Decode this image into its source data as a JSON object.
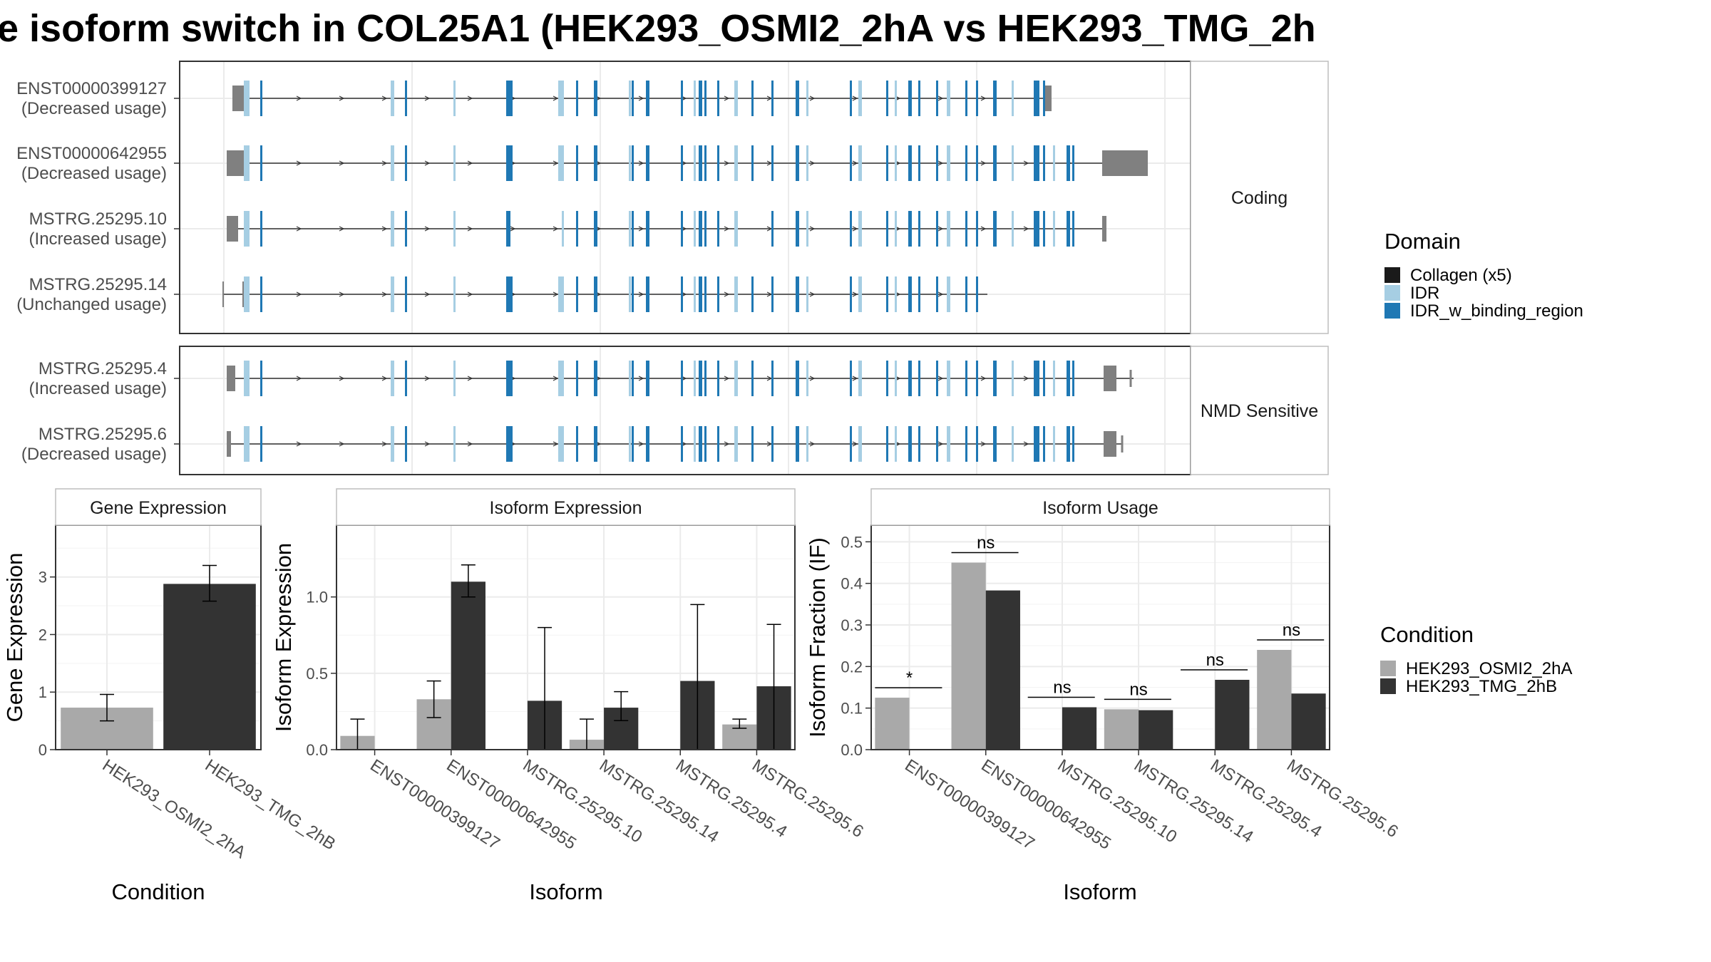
{
  "title": "e isoform switch in COL25A1 (HEK293_OSMI2_2hA vs HEK293_TMG_2h",
  "colors": {
    "condition_a": "#a9a9a9",
    "condition_b": "#333333",
    "utr": "#808080",
    "collagen": "#1a1a1a",
    "idr": "#a6cee3",
    "idr_binding": "#1f78b4",
    "grid": "#ebebeb",
    "panel_border": "#333333",
    "strip_border": "#bdbdbd"
  },
  "structure_panels": [
    {
      "label": "Coding",
      "isoforms": [
        {
          "name": "ENST00000399127",
          "status": "(Decreased usage)"
        },
        {
          "name": "ENST00000642955",
          "status": "(Decreased usage)"
        },
        {
          "name": "MSTRG.25295.10",
          "status": "(Increased usage)"
        },
        {
          "name": "MSTRG.25295.14",
          "status": "(Unchanged usage)"
        }
      ]
    },
    {
      "label": "NMD Sensitive",
      "isoforms": [
        {
          "name": "MSTRG.25295.4",
          "status": "(Increased usage)"
        },
        {
          "name": "MSTRG.25295.6",
          "status": "(Decreased usage)"
        }
      ]
    }
  ],
  "domain_legend": {
    "title": "Domain",
    "items": [
      {
        "label": "Collagen (x5)",
        "color": "#1a1a1a"
      },
      {
        "label": "IDR",
        "color": "#a6cee3"
      },
      {
        "label": "IDR_w_binding_region",
        "color": "#1f78b4"
      }
    ]
  },
  "condition_legend": {
    "title": "Condition",
    "items": [
      {
        "label": "HEK293_OSMI2_2hA",
        "color": "#a9a9a9"
      },
      {
        "label": "HEK293_TMG_2hB",
        "color": "#333333"
      }
    ]
  },
  "chart_data": [
    {
      "type": "bar",
      "title": "Gene Expression",
      "xlabel": "Condition",
      "ylabel": "Gene Expression",
      "ylim": [
        0,
        3.9
      ],
      "yticks": [
        0,
        1,
        2,
        3
      ],
      "categories": [
        "HEK293_OSMI2_2hA",
        "HEK293_TMG_2hB"
      ],
      "values": [
        0.73,
        2.88
      ],
      "errors": [
        [
          0.5,
          0.96
        ],
        [
          2.58,
          3.2
        ]
      ],
      "colors": [
        "#a9a9a9",
        "#333333"
      ]
    },
    {
      "type": "bar",
      "title": "Isoform Expression",
      "xlabel": "Isoform",
      "ylabel": "Isoform Expression",
      "ylim": [
        0,
        1.47
      ],
      "yticks": [
        0.0,
        0.5,
        1.0
      ],
      "ytick_labels": [
        "0.0",
        "0.5",
        "1.0"
      ],
      "categories": [
        "ENST00000399127",
        "ENST00000642955",
        "MSTRG.25295.10",
        "MSTRG.25295.14",
        "MSTRG.25295.4",
        "MSTRG.25295.6"
      ],
      "series": [
        {
          "name": "HEK293_OSMI2_2hA",
          "values": [
            0.09,
            0.33,
            0.0,
            0.065,
            0.0,
            0.165
          ],
          "errors": [
            [
              0.0,
              0.2
            ],
            [
              0.21,
              0.45
            ],
            [
              0.0,
              0.0
            ],
            [
              0.0,
              0.2
            ],
            [
              0.0,
              0.0
            ],
            [
              0.14,
              0.2
            ]
          ]
        },
        {
          "name": "HEK293_TMG_2hB",
          "values": [
            0.0,
            1.1,
            0.32,
            0.275,
            0.45,
            0.415
          ],
          "errors": [
            [
              0.0,
              0.0
            ],
            [
              1.0,
              1.21
            ],
            [
              0.0,
              0.8
            ],
            [
              0.19,
              0.38
            ],
            [
              0.0,
              0.95
            ],
            [
              0.0,
              0.82
            ]
          ]
        }
      ]
    },
    {
      "type": "bar",
      "title": "Isoform Usage",
      "xlabel": "Isoform",
      "ylabel": "Isoform Fraction (IF)",
      "ylim": [
        0,
        0.54
      ],
      "yticks": [
        0.0,
        0.1,
        0.2,
        0.3,
        0.4,
        0.5
      ],
      "ytick_labels": [
        "0.0",
        "0.1",
        "0.2",
        "0.3",
        "0.4",
        "0.5"
      ],
      "categories": [
        "ENST00000399127",
        "ENST00000642955",
        "MSTRG.25295.10",
        "MSTRG.25295.14",
        "MSTRG.25295.4",
        "MSTRG.25295.6"
      ],
      "series": [
        {
          "name": "HEK293_OSMI2_2hA",
          "values": [
            0.125,
            0.45,
            0.0,
            0.097,
            0.0,
            0.24
          ]
        },
        {
          "name": "HEK293_TMG_2hB",
          "values": [
            0.0,
            0.383,
            0.102,
            0.095,
            0.168,
            0.135
          ]
        }
      ],
      "significance": [
        "*",
        "ns",
        "ns",
        "ns",
        "ns",
        "ns"
      ]
    }
  ]
}
